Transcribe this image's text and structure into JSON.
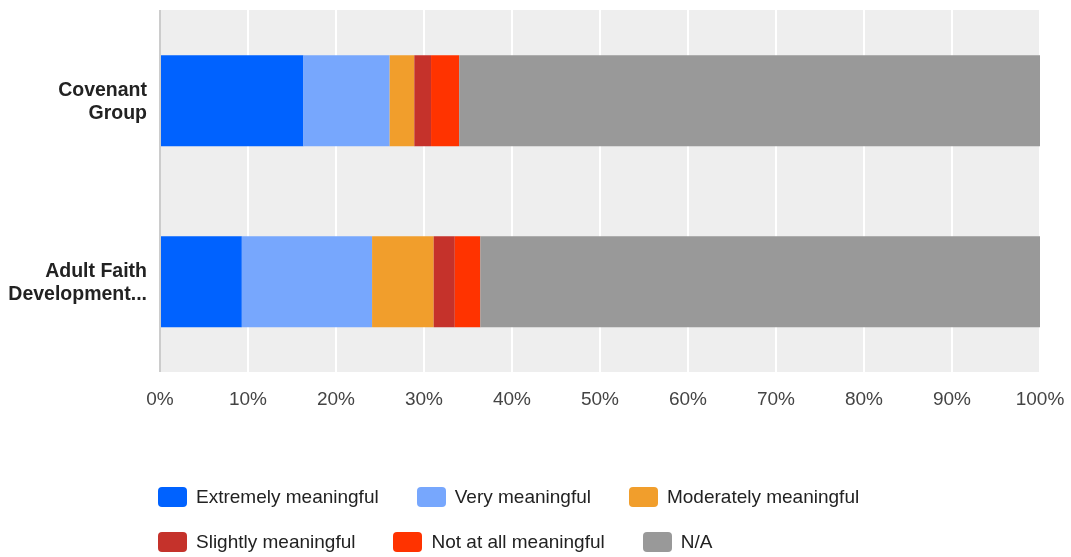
{
  "chart_data": {
    "type": "bar",
    "orientation": "horizontal",
    "stacked": true,
    "categories": [
      "Covenant Group",
      "Adult Faith Development..."
    ],
    "series": [
      {
        "name": "Extremely meaningful",
        "color": "#0062ff",
        "values": [
          16.3,
          9.3
        ]
      },
      {
        "name": "Very meaningful",
        "color": "#77a7fd",
        "values": [
          9.8,
          14.8
        ]
      },
      {
        "name": "Moderately meaningful",
        "color": "#f19e2c",
        "values": [
          2.8,
          7.0
        ]
      },
      {
        "name": "Slightly meaningful",
        "color": "#c5322b",
        "values": [
          1.9,
          2.4
        ]
      },
      {
        "name": "Not at all meaningful",
        "color": "#ff3300",
        "values": [
          3.2,
          2.9
        ]
      },
      {
        "name": "N/A",
        "color": "#999999",
        "values": [
          66.0,
          63.6
        ]
      }
    ],
    "xlim": [
      0,
      100
    ],
    "xticks": [
      {
        "value": 0,
        "label": "0%"
      },
      {
        "value": 10,
        "label": "10%"
      },
      {
        "value": 20,
        "label": "20%"
      },
      {
        "value": 30,
        "label": "30%"
      },
      {
        "value": 40,
        "label": "40%"
      },
      {
        "value": 50,
        "label": "50%"
      },
      {
        "value": 60,
        "label": "60%"
      },
      {
        "value": 70,
        "label": "70%"
      },
      {
        "value": 80,
        "label": "80%"
      },
      {
        "value": 90,
        "label": "90%"
      },
      {
        "value": 100,
        "label": "100%"
      }
    ],
    "grid": "x",
    "legend": "bottom"
  }
}
